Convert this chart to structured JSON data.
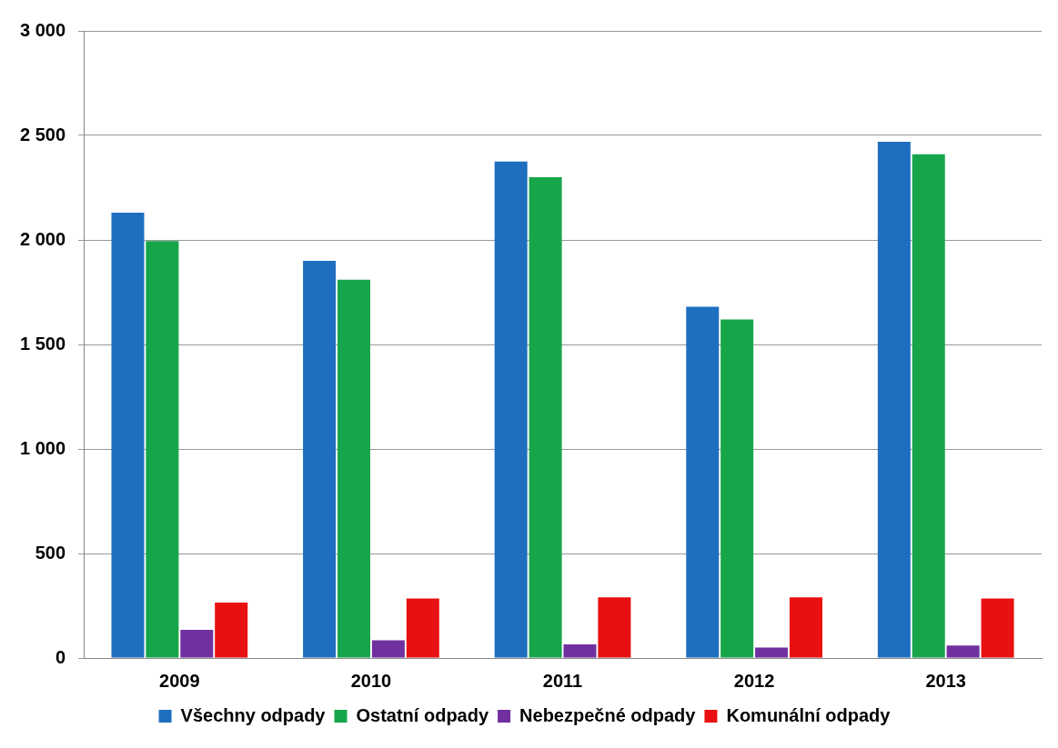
{
  "chart_data": {
    "type": "bar",
    "categories": [
      "2009",
      "2010",
      "2011",
      "2012",
      "2013"
    ],
    "series": [
      {
        "name": "Všechny odpady",
        "color": "#1f6fc0",
        "values": [
          2130,
          1900,
          2375,
          1680,
          2470
        ]
      },
      {
        "name": "Ostatní odpady",
        "color": "#17a54a",
        "values": [
          1995,
          1810,
          2300,
          1620,
          2410
        ]
      },
      {
        "name": "Nebezpečné odpady",
        "color": "#7030a0",
        "values": [
          135,
          85,
          65,
          50,
          60
        ]
      },
      {
        "name": "Komunální odpady",
        "color": "#e81010",
        "values": [
          265,
          285,
          290,
          290,
          285
        ]
      }
    ],
    "ylim": [
      0,
      3000
    ],
    "yticks": [
      0,
      500,
      {
        "value": 1000,
        "label": "1 000"
      },
      {
        "value": 1500,
        "label": "1 500"
      },
      {
        "value": 2000,
        "label": "2 000"
      },
      {
        "value": 2500,
        "label": "2 500"
      },
      {
        "value": 3000,
        "label": "3 000"
      }
    ],
    "grid": "y",
    "legend": "bottom"
  }
}
